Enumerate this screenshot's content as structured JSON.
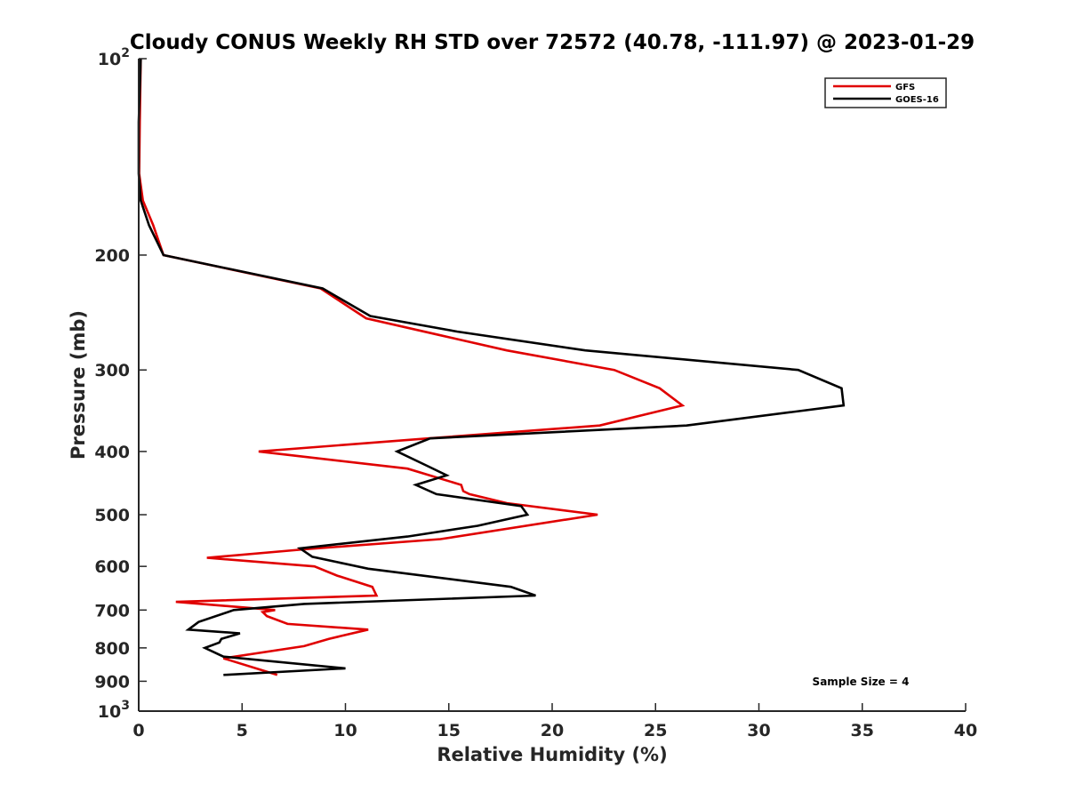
{
  "chart_data": {
    "type": "line",
    "title": "Cloudy CONUS Weekly RH STD over 72572 (40.78, -111.97) @ 2023-01-29",
    "xlabel": "Relative Humidity (%)",
    "ylabel": "Pressure (mb)",
    "xlim": [
      0,
      40
    ],
    "ylim": [
      100,
      1000
    ],
    "yscale": "log",
    "y_reversed": true,
    "xticks": [
      0,
      5,
      10,
      15,
      20,
      25,
      30,
      35,
      40
    ],
    "yticks": [
      {
        "value": 100,
        "base": "10",
        "exp": "2"
      },
      {
        "value": 200,
        "label": "200"
      },
      {
        "value": 300,
        "label": "300"
      },
      {
        "value": 400,
        "label": "400"
      },
      {
        "value": 500,
        "label": "500"
      },
      {
        "value": 600,
        "label": "600"
      },
      {
        "value": 700,
        "label": "700"
      },
      {
        "value": 800,
        "label": "800"
      },
      {
        "value": 900,
        "label": "900"
      },
      {
        "value": 1000,
        "base": "10",
        "exp": "3"
      }
    ],
    "legend_position": "top-right",
    "annotation": "Sample Size = 4",
    "series": [
      {
        "name": "GFS",
        "color": "#e00000",
        "points": [
          [
            0.1,
            100
          ],
          [
            0.05,
            125
          ],
          [
            0.02,
            150
          ],
          [
            0.2,
            165
          ],
          [
            0.7,
            180
          ],
          [
            1.2,
            200
          ],
          [
            8.8,
            225
          ],
          [
            11.0,
            250
          ],
          [
            14.5,
            265
          ],
          [
            17.8,
            280
          ],
          [
            23.0,
            300
          ],
          [
            25.2,
            320
          ],
          [
            26.3,
            340
          ],
          [
            22.3,
            365
          ],
          [
            14.0,
            382
          ],
          [
            5.8,
            400
          ],
          [
            13.0,
            425
          ],
          [
            15.6,
            450
          ],
          [
            15.7,
            460
          ],
          [
            16.0,
            465
          ],
          [
            17.8,
            480
          ],
          [
            22.2,
            500
          ],
          [
            14.6,
            545
          ],
          [
            8.0,
            565
          ],
          [
            3.3,
            582
          ],
          [
            8.5,
            600
          ],
          [
            9.6,
            620
          ],
          [
            11.3,
            645
          ],
          [
            11.5,
            665
          ],
          [
            1.8,
            680
          ],
          [
            6.6,
            700
          ],
          [
            6.0,
            705
          ],
          [
            6.2,
            715
          ],
          [
            7.2,
            735
          ],
          [
            11.1,
            750
          ],
          [
            9.2,
            775
          ],
          [
            8.0,
            795
          ],
          [
            4.1,
            830
          ],
          [
            6.7,
            880
          ]
        ]
      },
      {
        "name": "GOES-16",
        "color": "#000000",
        "points": [
          [
            0.1,
            100
          ],
          [
            0.0,
            125
          ],
          [
            0.0,
            150
          ],
          [
            0.1,
            165
          ],
          [
            0.5,
            180
          ],
          [
            1.2,
            200
          ],
          [
            8.9,
            225
          ],
          [
            11.2,
            248
          ],
          [
            15.4,
            262
          ],
          [
            21.6,
            280
          ],
          [
            31.9,
            300
          ],
          [
            34.0,
            320
          ],
          [
            34.1,
            340
          ],
          [
            26.5,
            365
          ],
          [
            14.1,
            382
          ],
          [
            12.5,
            400
          ],
          [
            13.9,
            420
          ],
          [
            14.9,
            435
          ],
          [
            13.4,
            450
          ],
          [
            14.4,
            465
          ],
          [
            18.5,
            485
          ],
          [
            18.8,
            500
          ],
          [
            16.4,
            520
          ],
          [
            13.0,
            540
          ],
          [
            7.8,
            563
          ],
          [
            8.4,
            580
          ],
          [
            11.1,
            605
          ],
          [
            18.0,
            645
          ],
          [
            19.2,
            665
          ],
          [
            8.0,
            685
          ],
          [
            4.6,
            700
          ],
          [
            2.9,
            730
          ],
          [
            2.4,
            750
          ],
          [
            4.9,
            760
          ],
          [
            4.0,
            775
          ],
          [
            3.9,
            785
          ],
          [
            3.2,
            800
          ],
          [
            4.1,
            825
          ],
          [
            10.0,
            860
          ],
          [
            4.1,
            880
          ]
        ]
      }
    ]
  }
}
